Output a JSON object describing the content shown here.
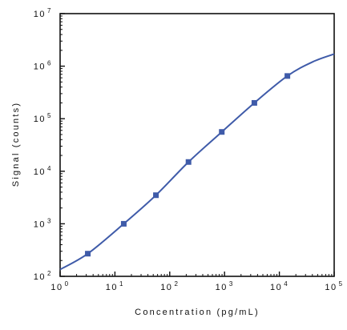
{
  "chart_data": {
    "type": "line",
    "title": "",
    "xlabel": "Concentration (pg/mL)",
    "ylabel": "Signal (counts)",
    "x_scale": "log",
    "y_scale": "log",
    "xlim": [
      1,
      100000
    ],
    "ylim": [
      100,
      10000000
    ],
    "x_ticks": [
      {
        "value": 1,
        "base": "10",
        "exp": "0"
      },
      {
        "value": 10,
        "base": "10",
        "exp": "1"
      },
      {
        "value": 100,
        "base": "10",
        "exp": "2"
      },
      {
        "value": 1000,
        "base": "10",
        "exp": "3"
      },
      {
        "value": 10000,
        "base": "10",
        "exp": "4"
      },
      {
        "value": 100000,
        "base": "10",
        "exp": "5"
      }
    ],
    "y_ticks": [
      {
        "value": 100,
        "base": "10",
        "exp": "2"
      },
      {
        "value": 1000,
        "base": "10",
        "exp": "3"
      },
      {
        "value": 10000,
        "base": "10",
        "exp": "4"
      },
      {
        "value": 100000,
        "base": "10",
        "exp": "5"
      },
      {
        "value": 1000000,
        "base": "10",
        "exp": "6"
      },
      {
        "value": 10000000,
        "base": "10",
        "exp": "7"
      }
    ],
    "grid": false,
    "legend": "none",
    "series": [
      {
        "marker": "square",
        "color": "#3f5ba9",
        "points": [
          {
            "x": 3.2,
            "y": 270
          },
          {
            "x": 14.5,
            "y": 1000
          },
          {
            "x": 56,
            "y": 3500
          },
          {
            "x": 220,
            "y": 15000
          },
          {
            "x": 890,
            "y": 56000
          },
          {
            "x": 3500,
            "y": 200000
          },
          {
            "x": 14000,
            "y": 650000
          }
        ],
        "fit_curve": [
          {
            "x": 1,
            "y": 135
          },
          {
            "x": 3.2,
            "y": 270
          },
          {
            "x": 14.5,
            "y": 1000
          },
          {
            "x": 56,
            "y": 3500
          },
          {
            "x": 220,
            "y": 15000
          },
          {
            "x": 890,
            "y": 56000
          },
          {
            "x": 3500,
            "y": 200000
          },
          {
            "x": 14000,
            "y": 650000
          },
          {
            "x": 40000,
            "y": 1200000
          },
          {
            "x": 100000,
            "y": 1700000
          }
        ]
      }
    ],
    "colors": {
      "series": "#3f5ba9",
      "axis": "#111111"
    }
  }
}
